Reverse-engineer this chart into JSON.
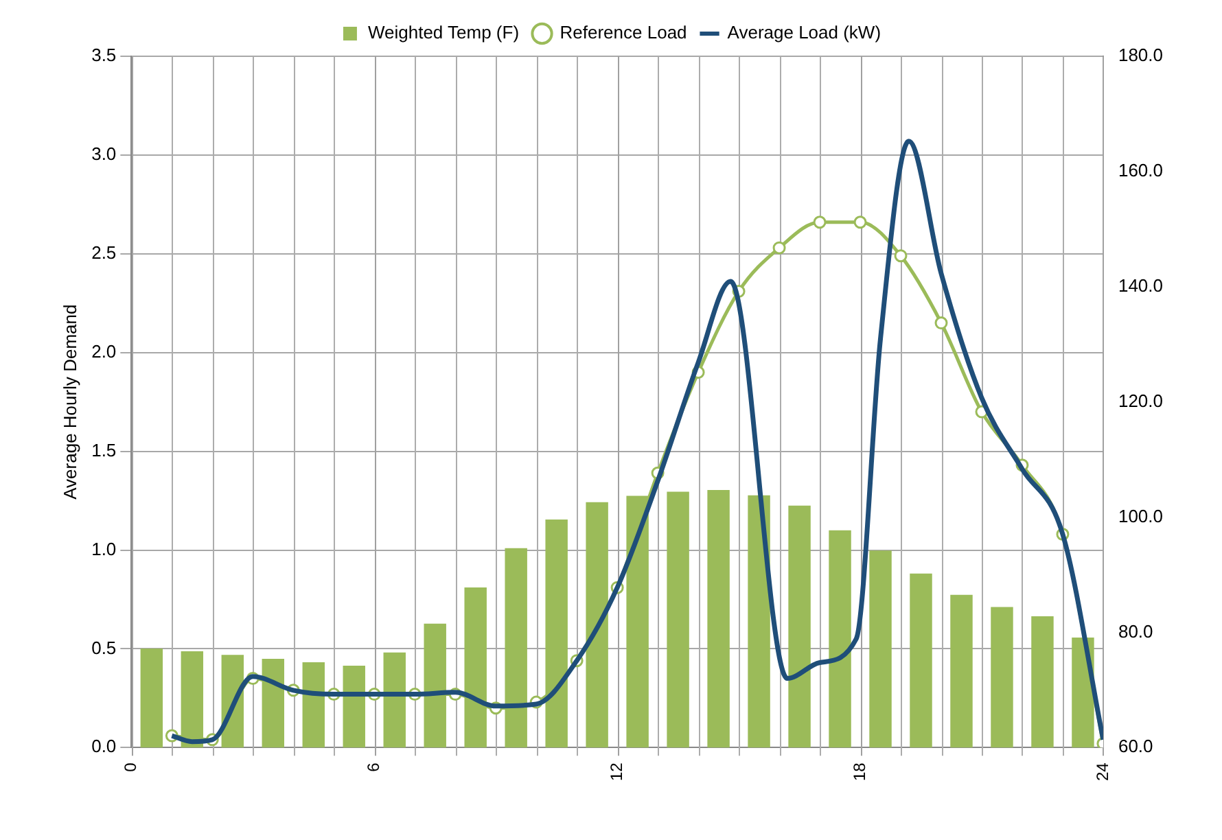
{
  "chart_data": {
    "type": "bar",
    "ylabel": "Average Hourly Demand",
    "legend": "top",
    "grid": true,
    "xlim": [
      0,
      24
    ],
    "xticks": [
      {
        "value": 0,
        "label": "0"
      },
      {
        "value": 1,
        "label": null
      },
      {
        "value": 2,
        "label": null
      },
      {
        "value": 3,
        "label": null
      },
      {
        "value": 4,
        "label": null
      },
      {
        "value": 5,
        "label": null
      },
      {
        "value": 6,
        "label": "6"
      },
      {
        "value": 7,
        "label": null
      },
      {
        "value": 8,
        "label": null
      },
      {
        "value": 9,
        "label": null
      },
      {
        "value": 10,
        "label": null
      },
      {
        "value": 11,
        "label": null
      },
      {
        "value": 12,
        "label": "12"
      },
      {
        "value": 13,
        "label": null
      },
      {
        "value": 14,
        "label": null
      },
      {
        "value": 15,
        "label": null
      },
      {
        "value": 16,
        "label": null
      },
      {
        "value": 17,
        "label": null
      },
      {
        "value": 18,
        "label": "18"
      },
      {
        "value": 19,
        "label": null
      },
      {
        "value": 20,
        "label": null
      },
      {
        "value": 21,
        "label": null
      },
      {
        "value": 22,
        "label": null
      },
      {
        "value": 23,
        "label": null
      },
      {
        "value": 24,
        "label": "24"
      }
    ],
    "ylim": [
      0,
      3.5
    ],
    "yticks": [
      {
        "value": 0,
        "label": "0.0"
      },
      {
        "value": 0.5,
        "label": "0.5"
      },
      {
        "value": 1,
        "label": "1.0"
      },
      {
        "value": 1.5,
        "label": "1.5"
      },
      {
        "value": 2,
        "label": "2.0"
      },
      {
        "value": 2.5,
        "label": "2.5"
      },
      {
        "value": 3,
        "label": "3.0"
      },
      {
        "value": 3.5,
        "label": "3.5"
      }
    ],
    "y2lim": [
      60,
      180
    ],
    "y2ticks": [
      {
        "value": 60,
        "label": "60.0"
      },
      {
        "value": 80,
        "label": "80.0"
      },
      {
        "value": 100,
        "label": "100.0"
      },
      {
        "value": 120,
        "label": "120.0"
      },
      {
        "value": 140,
        "label": "140.0"
      },
      {
        "value": 160,
        "label": "160.0"
      },
      {
        "value": 180,
        "label": "180.0"
      }
    ],
    "series": [
      {
        "name": "Weighted Temp (F)",
        "axis": "y2",
        "color": "#9bbb59",
        "x": [
          0.5,
          1.5,
          2.5,
          3.5,
          4.5,
          5.5,
          6.5,
          7.5,
          8.5,
          9.5,
          10.5,
          11.5,
          12.5,
          13.5,
          14.5,
          15.5,
          16.5,
          17.5,
          18.5,
          19.5,
          20.5,
          21.5,
          22.5,
          23.5
        ],
        "values": [
          77.2,
          76.7,
          76.1,
          75.4,
          74.8,
          74.2,
          76.5,
          81.5,
          87.8,
          94.6,
          99.6,
          102.6,
          103.7,
          104.4,
          104.7,
          103.8,
          102.0,
          97.7,
          94.2,
          90.2,
          86.5,
          84.4,
          82.8,
          79.1
        ]
      },
      {
        "name": "Reference Load",
        "type": "line",
        "color": "#9bbb59",
        "marker": "circle",
        "x": [
          1,
          2,
          3,
          4,
          5,
          6,
          7,
          8,
          9,
          10,
          11,
          12,
          13,
          14,
          15,
          16,
          17,
          18,
          19,
          20,
          21,
          22,
          23,
          24
        ],
        "values": [
          0.06,
          0.04,
          0.35,
          0.29,
          0.27,
          0.27,
          0.27,
          0.27,
          0.2,
          0.23,
          0.44,
          0.81,
          1.39,
          1.9,
          2.31,
          2.53,
          2.66,
          2.66,
          2.49,
          2.15,
          1.7,
          1.43,
          1.08,
          0.02
        ]
      },
      {
        "name": "Average Load (kW)",
        "type": "line",
        "color": "#1f4e79",
        "marker": "none",
        "x": [
          1,
          1.5,
          2,
          3,
          4,
          5,
          6,
          7,
          8,
          9,
          10,
          11,
          12,
          13,
          14,
          14.8,
          16.2,
          17,
          17.9,
          18.5,
          19.2,
          20,
          21,
          22,
          23,
          24
        ],
        "values": [
          0.06,
          0.03,
          0.04,
          0.36,
          0.29,
          0.27,
          0.27,
          0.27,
          0.28,
          0.21,
          0.22,
          0.44,
          0.81,
          1.35,
          1.95,
          2.36,
          0.35,
          0.43,
          0.55,
          2.07,
          3.07,
          2.4,
          1.77,
          1.41,
          1.08,
          0.04
        ]
      }
    ]
  }
}
